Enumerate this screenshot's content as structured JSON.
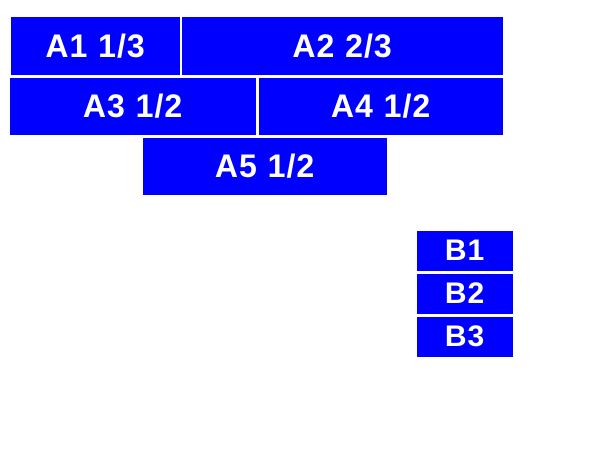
{
  "page": {
    "background_color": "#ffffff",
    "box_color": "#0000ff",
    "label_color": "#ffffff"
  },
  "boxes": {
    "a1": {
      "label": "A1 1/3"
    },
    "a2": {
      "label": "A2 2/3"
    },
    "a3": {
      "label": "A3 1/2"
    },
    "a4": {
      "label": "A4 1/2"
    },
    "a5": {
      "label": "A5 1/2"
    },
    "b1": {
      "label": "B1"
    },
    "b2": {
      "label": "B2"
    },
    "b3": {
      "label": "B3"
    }
  }
}
